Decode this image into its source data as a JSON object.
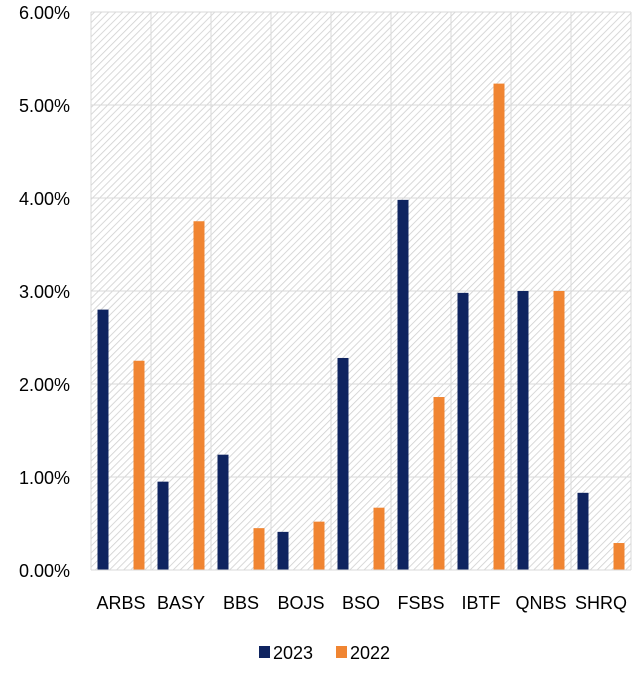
{
  "chart_data": {
    "type": "bar",
    "title": "",
    "xlabel": "",
    "ylabel": "",
    "categories": [
      "ARBS",
      "BASY",
      "BBS",
      "BOJS",
      "BSO",
      "FSBS",
      "IBTF",
      "QNBS",
      "SHRQ"
    ],
    "series": [
      {
        "name": "2023",
        "color": "#0F2460",
        "values": [
          2.8,
          0.95,
          1.24,
          0.41,
          2.28,
          3.98,
          2.98,
          3.0,
          0.83
        ]
      },
      {
        "name": "2022",
        "color": "#F08532",
        "values": [
          2.25,
          3.75,
          0.45,
          0.52,
          0.67,
          1.86,
          5.23,
          3.0,
          0.29
        ]
      }
    ],
    "ylim": [
      0,
      6
    ],
    "yticks": [
      0,
      1,
      2,
      3,
      4,
      5,
      6
    ],
    "ytick_labels": [
      "0.00%",
      "1.00%",
      "2.00%",
      "3.00%",
      "4.00%",
      "5.00%",
      "6.00%"
    ],
    "y_unit": "%",
    "grid": true,
    "plot_background": "hatched-gray",
    "legend_position": "bottom-center"
  }
}
